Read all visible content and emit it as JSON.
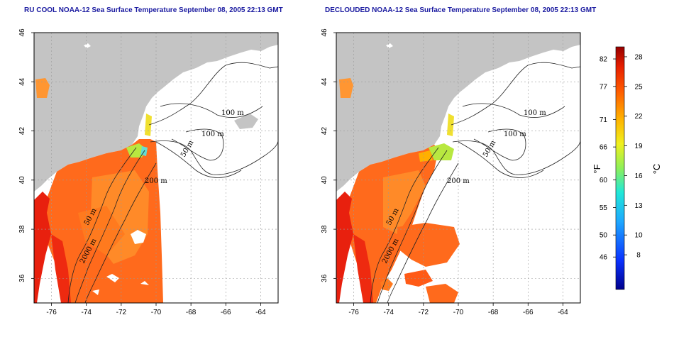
{
  "titles": {
    "left": "RU COOL NOAA-12 Sea Surface Temperature September 08, 2005 22:13 GMT",
    "right": "DECLOUDED NOAA-12 Sea Surface Temperature September 08, 2005 22:13 GMT"
  },
  "map": {
    "lon_ticks": [
      "-76",
      "-74",
      "-72",
      "-70",
      "-68",
      "-66",
      "-64"
    ],
    "lat_ticks": [
      "46",
      "44",
      "42",
      "40",
      "38",
      "36"
    ],
    "lon_range": [
      -77,
      -63
    ],
    "lat_range": [
      35,
      46
    ],
    "isobath_labels": [
      "100 m",
      "100 m",
      "50 m",
      "200 m",
      "50 m",
      "2000 m"
    ]
  },
  "colorbar": {
    "fahrenheit_ticks": [
      "82",
      "77",
      "71",
      "66",
      "60",
      "55",
      "50",
      "46"
    ],
    "celsius_ticks": [
      "28",
      "25",
      "22",
      "19",
      "16",
      "13",
      "10",
      "8"
    ],
    "fahrenheit_unit": "°F",
    "celsius_unit": "°C"
  },
  "colors": {
    "land": "#c4c4c4",
    "ocean": "#ffffff",
    "title": "#1a1aa0",
    "sst_warm": "#ff5a14",
    "sst_hot": "#e81a0f"
  }
}
